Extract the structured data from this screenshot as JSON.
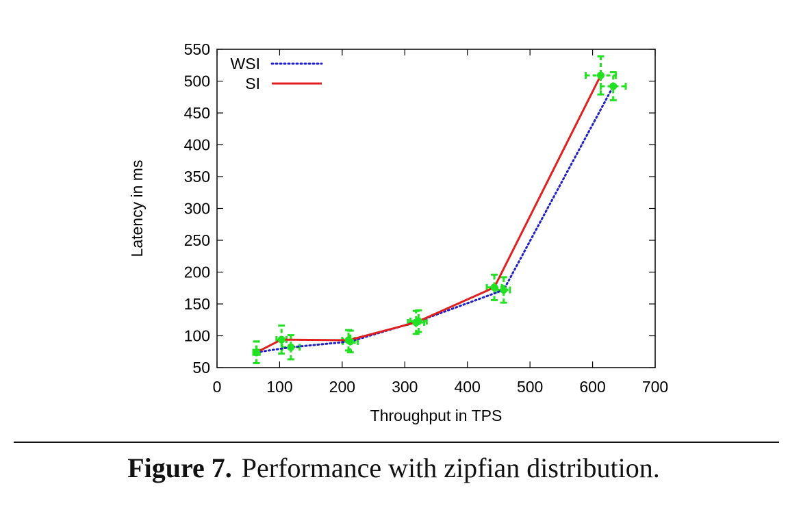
{
  "chart_data": {
    "type": "line",
    "xlabel": "Throughput in TPS",
    "ylabel": "Latency in ms",
    "xlim": [
      0,
      700
    ],
    "ylim": [
      50,
      550
    ],
    "xticks": [
      0,
      100,
      200,
      300,
      400,
      500,
      600,
      700
    ],
    "yticks": [
      50,
      100,
      150,
      200,
      250,
      300,
      350,
      400,
      450,
      500,
      550
    ],
    "grid": false,
    "legend_position": "top-left",
    "series": [
      {
        "name": "WSI",
        "style": "dotted",
        "color": "#1f1fc8",
        "points": [
          {
            "x": 63,
            "y": 74,
            "xerr": 5,
            "yerr": 17
          },
          {
            "x": 118,
            "y": 82,
            "xerr": 14,
            "yerr": 19
          },
          {
            "x": 213,
            "y": 91,
            "xerr": 12,
            "yerr": 17
          },
          {
            "x": 322,
            "y": 123,
            "xerr": 13,
            "yerr": 17
          },
          {
            "x": 458,
            "y": 172,
            "xerr": 10,
            "yerr": 20
          },
          {
            "x": 633,
            "y": 492,
            "xerr": 20,
            "yerr": 22
          }
        ]
      },
      {
        "name": "SI",
        "style": "solid",
        "color": "#e01f1f",
        "points": [
          {
            "x": 63,
            "y": 74,
            "xerr": 5,
            "yerr": 17
          },
          {
            "x": 103,
            "y": 94,
            "xerr": 8,
            "yerr": 22
          },
          {
            "x": 210,
            "y": 93,
            "xerr": 10,
            "yerr": 16
          },
          {
            "x": 318,
            "y": 121,
            "xerr": 13,
            "yerr": 18
          },
          {
            "x": 443,
            "y": 176,
            "xerr": 12,
            "yerr": 20
          },
          {
            "x": 613,
            "y": 509,
            "xerr": 24,
            "yerr": 30
          }
        ]
      }
    ],
    "errorbar_color": "#22e022"
  },
  "caption": {
    "label": "Figure 7.",
    "text": "Performance with zipfian distribution."
  }
}
